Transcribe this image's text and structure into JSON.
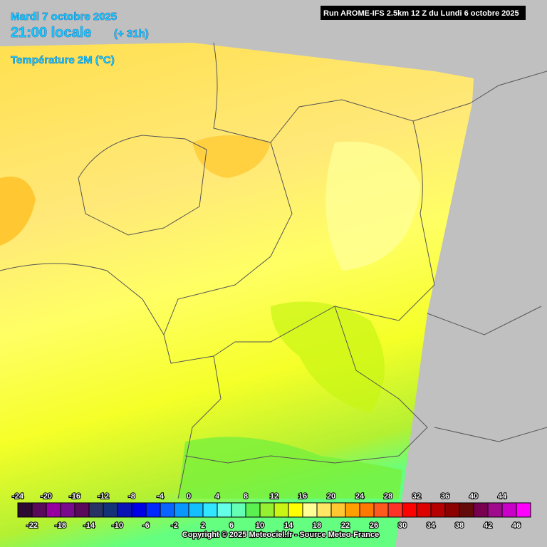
{
  "header": {
    "date": "Mardi 7 octobre 2025",
    "time": "21:00 locale",
    "lead": "(+ 31h)",
    "field": "Température 2M (°C)"
  },
  "run_info": "Run AROME-IFS 2.5km 12 Z du Lundi 6 octobre 2025",
  "legend": {
    "ticks": [
      -24,
      -22,
      -20,
      -18,
      -16,
      -14,
      -12,
      -10,
      -8,
      -6,
      -4,
      -2,
      0,
      2,
      4,
      6,
      8,
      10,
      12,
      14,
      16,
      18,
      20,
      22,
      24,
      26,
      28,
      30,
      32,
      34,
      36,
      38,
      40,
      42,
      44,
      46
    ],
    "colors": [
      "#2d0a32",
      "#5a0a5a",
      "#9600a0",
      "#780a8c",
      "#5a0a5a",
      "#283264",
      "#143278",
      "#0a14b4",
      "#0000e6",
      "#0028ff",
      "#0a64ff",
      "#0a96ff",
      "#14beff",
      "#32e6ff",
      "#64ffe6",
      "#64ffb4",
      "#5af050",
      "#96f032",
      "#c8f514",
      "#ffff00",
      "#ffff96",
      "#ffe664",
      "#ffc832",
      "#ffa000",
      "#ff7800",
      "#ff5a1e",
      "#ff3228",
      "#ff0000",
      "#dc0000",
      "#b40000",
      "#8c0000",
      "#640a0a",
      "#780050",
      "#a00a8c",
      "#c800c8",
      "#ff00ff"
    ]
  },
  "copyright": "Copyright © 2025 Meteociel.fr - Source Meteo-France"
}
